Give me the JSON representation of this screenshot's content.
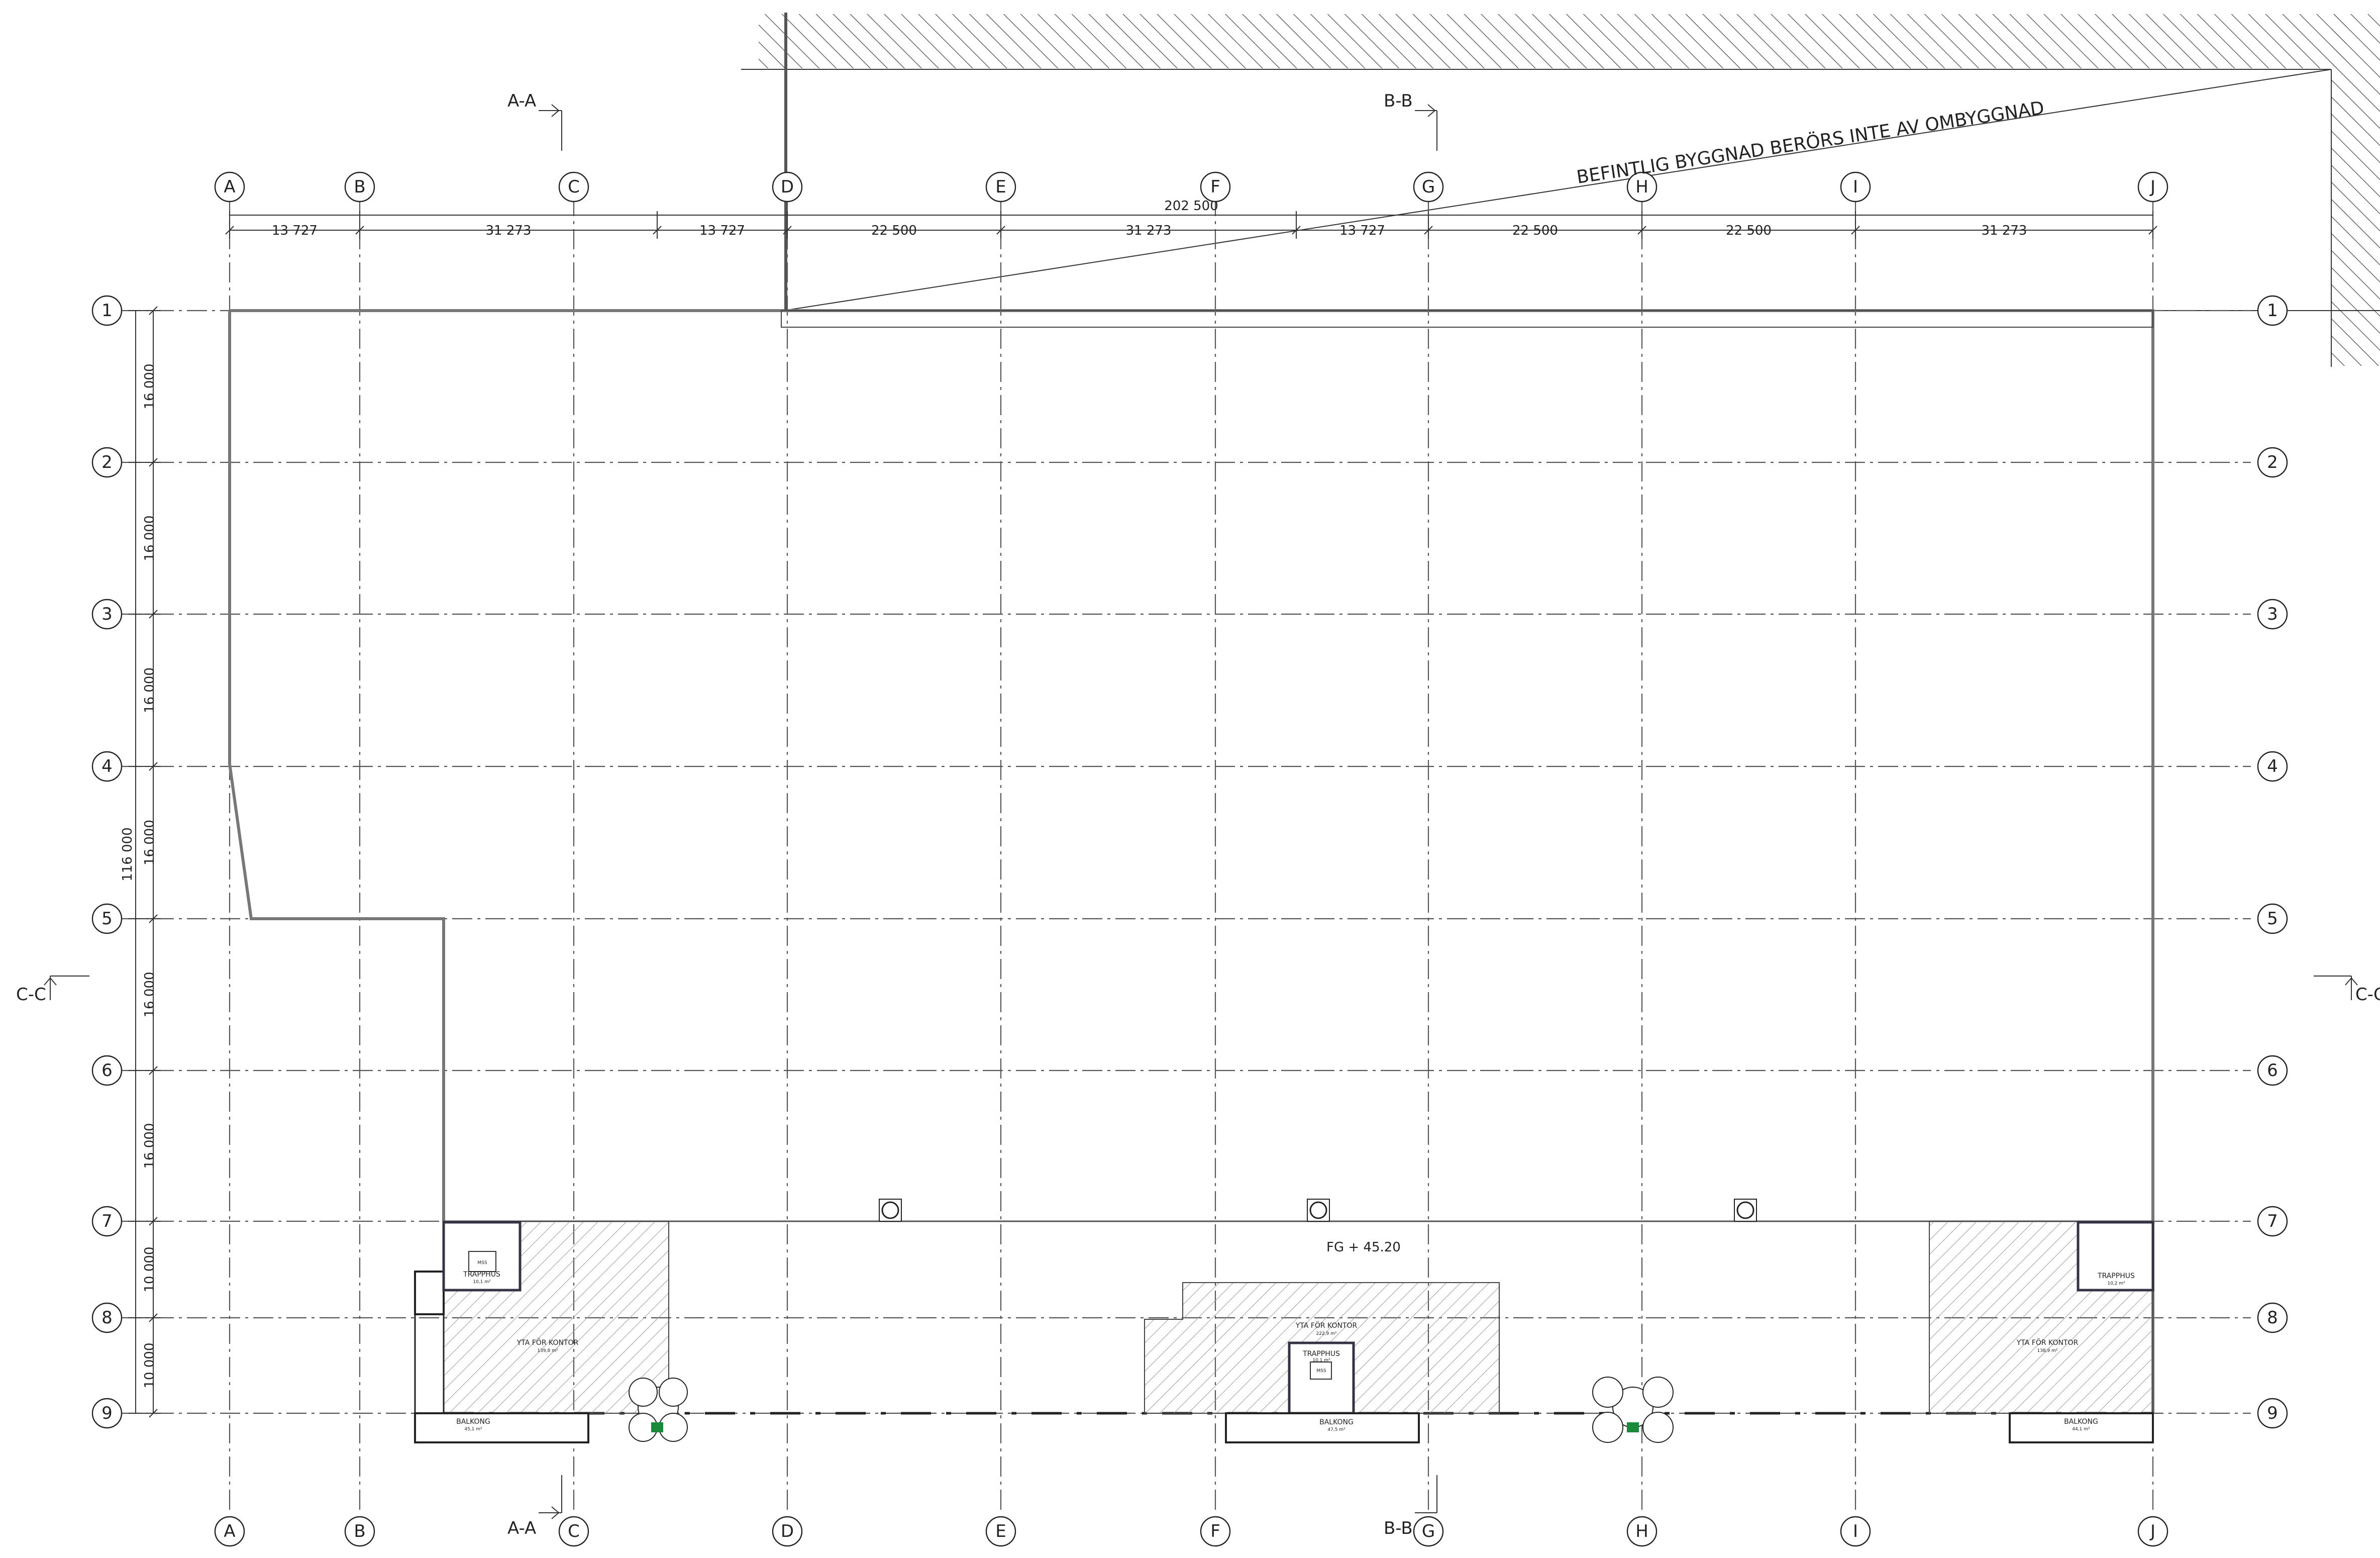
{
  "grid": {
    "columns": [
      "A",
      "B",
      "C",
      "D",
      "E",
      "F",
      "G",
      "H",
      "I",
      "J"
    ],
    "rows": [
      "1",
      "2",
      "3",
      "4",
      "5",
      "6",
      "7",
      "8",
      "9"
    ]
  },
  "dimensions": {
    "overall_width": "202 500",
    "bays": [
      "13 727",
      "31 273",
      "13 727",
      "22 500",
      "31 273",
      "13 727",
      "22 500",
      "22 500",
      "31 273"
    ],
    "overall_height": "116 000",
    "row_spacings": [
      "16 000",
      "16 000",
      "16 000",
      "16 000",
      "16 000",
      "16 000",
      "10 000",
      "10 000"
    ]
  },
  "notes": {
    "existing_building": "BEFINTLIG BYGGNAD BERÖRS INTE AV OMBYGGNAD",
    "floor_level": "FG + 45.20"
  },
  "sections": {
    "aa": "A-A",
    "bb": "B-B",
    "cc_left": "C-C",
    "cc_right": "C-C"
  },
  "rooms": {
    "left": {
      "stair_label": "TRAPPHUS",
      "stair_area": "10,1 m²",
      "mss": "MSS",
      "office_label": "YTA FÖR KONTOR",
      "office_area": "139,8 m²",
      "balcony_label": "BALKONG",
      "balcony_area": "45,1 m²"
    },
    "middle": {
      "office_label": "YTA FÖR KONTOR",
      "office_area": "222,9 m²",
      "stair_label": "TRAPPHUS",
      "stair_area": "10,1 m²",
      "mss": "MSS",
      "balcony_label": "BALKONG",
      "balcony_area": "47,5 m²"
    },
    "right": {
      "stair_label": "TRAPPHUS",
      "stair_area": "10,2 m²",
      "office_label": "YTA FÖR KONTOR",
      "office_area": "138,9 m²",
      "balcony_label": "BALKONG",
      "balcony_area": "44,1 m²"
    }
  }
}
